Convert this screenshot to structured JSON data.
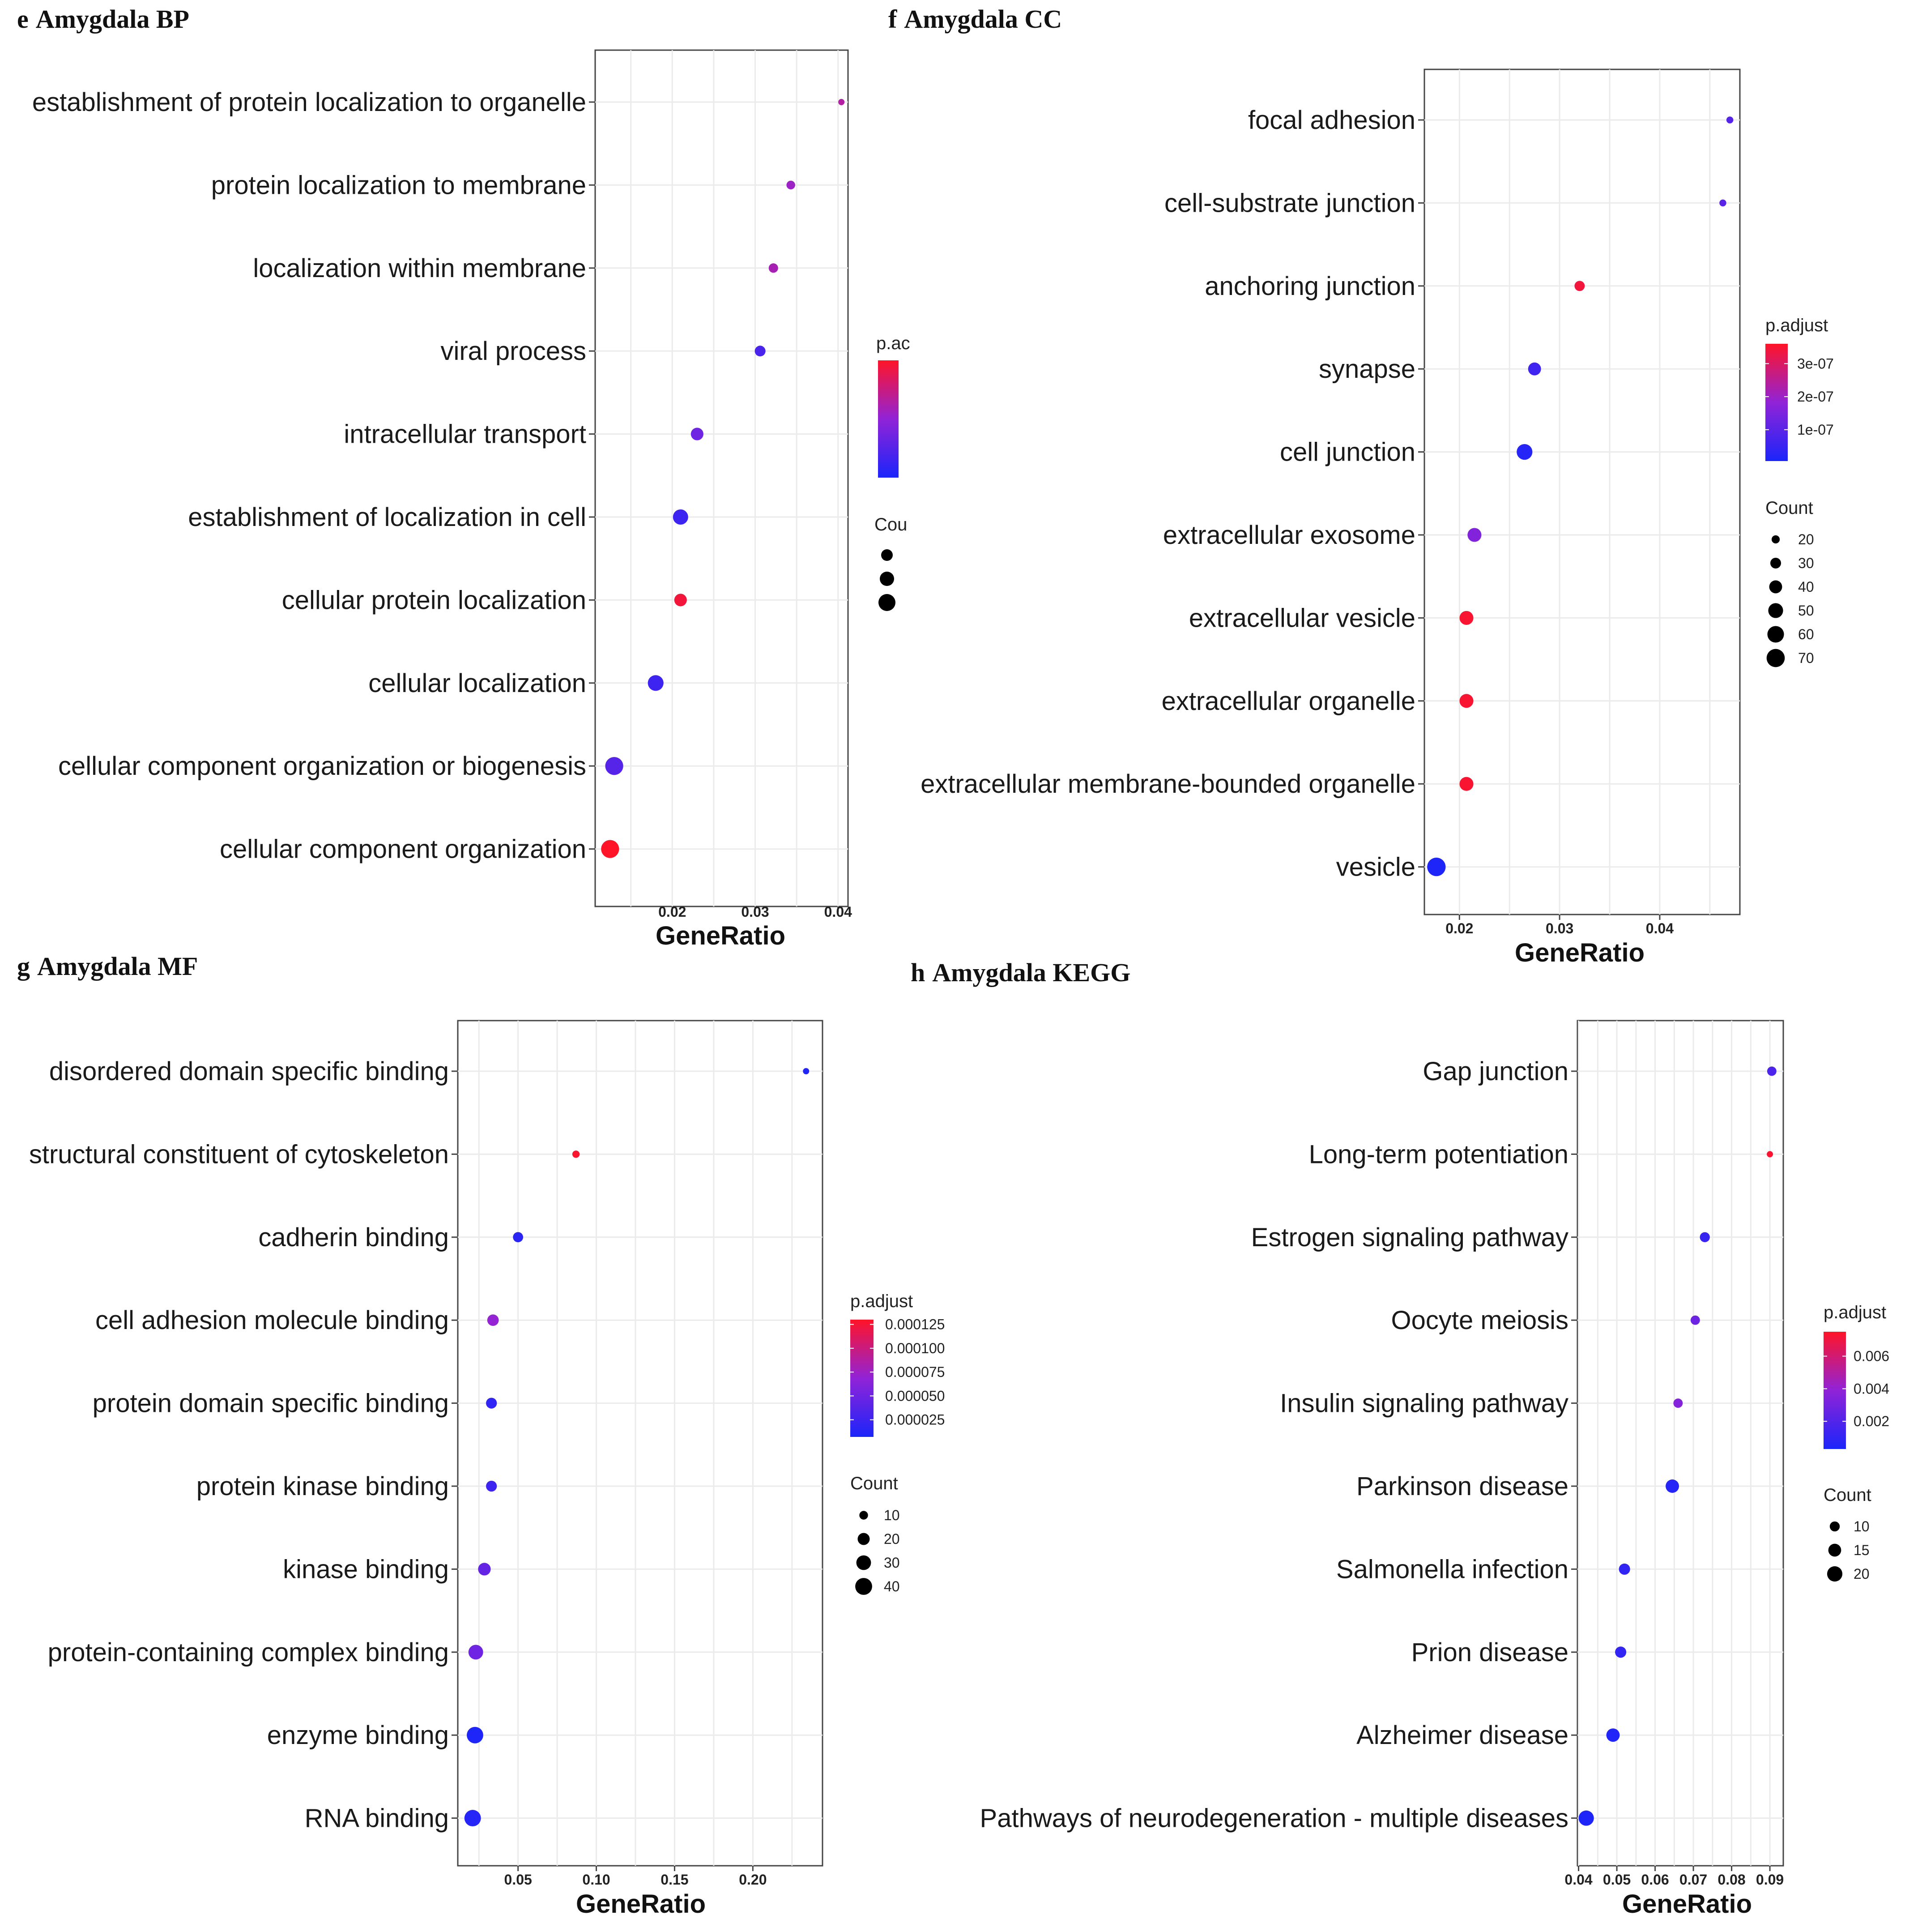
{
  "chart_data": [
    {
      "panel": "e",
      "title": "Amygdala BP",
      "type": "scatter",
      "xlabel": "GeneRatio",
      "xticks": [
        0.02,
        0.03,
        0.04
      ],
      "xtick_labels": [
        "0.02",
        "0.03",
        "0.04"
      ],
      "xlim": [
        0.0107,
        0.0412
      ],
      "color_legend": {
        "title": "p.ac",
        "ticks": [],
        "labels": [],
        "range": [
          0,
          1
        ]
      },
      "size_legend": {
        "title": "Cou",
        "values": [],
        "labels": []
      },
      "size_range": [
        6,
        30
      ],
      "points": [
        {
          "term": "establishment of protein localization to organelle",
          "x": 0.0404,
          "size": 6,
          "color": 0.65
        },
        {
          "term": "protein localization to membrane",
          "x": 0.0343,
          "size": 9,
          "color": 0.55
        },
        {
          "term": "localization within membrane",
          "x": 0.0322,
          "size": 10,
          "color": 0.6
        },
        {
          "term": "viral process",
          "x": 0.0306,
          "size": 12,
          "color": 0.2
        },
        {
          "term": "intracellular transport",
          "x": 0.023,
          "size": 15,
          "color": 0.35
        },
        {
          "term": "establishment of localization in cell",
          "x": 0.021,
          "size": 20,
          "color": 0.15
        },
        {
          "term": "cellular protein localization",
          "x": 0.021,
          "size": 15,
          "color": 0.95
        },
        {
          "term": "cellular localization",
          "x": 0.018,
          "size": 21,
          "color": 0.15
        },
        {
          "term": "cellular component organization or biogenesis",
          "x": 0.013,
          "size": 26,
          "color": 0.25
        },
        {
          "term": "cellular component organization",
          "x": 0.0125,
          "size": 26,
          "color": 1.0
        }
      ]
    },
    {
      "panel": "f",
      "title": "Amygdala CC",
      "type": "scatter",
      "xlabel": "GeneRatio",
      "xticks": [
        0.02,
        0.03,
        0.04
      ],
      "xtick_labels": [
        "0.02",
        "0.03",
        "0.04"
      ],
      "xlim": [
        0.0165,
        0.048
      ],
      "color_legend": {
        "title": "p.adjust",
        "ticks": [
          1e-07,
          2e-07,
          3e-07
        ],
        "labels": [
          "1e-07",
          "2e-07",
          "3e-07"
        ],
        "range": [
          5e-09,
          3.6e-07
        ]
      },
      "size_legend": {
        "title": "Count",
        "values": [
          20,
          30,
          40,
          50,
          60,
          70
        ],
        "labels": [
          "20",
          "30",
          "40",
          "50",
          "60",
          "70"
        ]
      },
      "size_range": [
        14,
        74
      ],
      "points": [
        {
          "term": "focal adhesion",
          "x": 0.047,
          "size": 16,
          "color": 9e-08
        },
        {
          "term": "cell-substrate junction",
          "x": 0.0463,
          "size": 16,
          "color": 1e-07
        },
        {
          "term": "anchoring junction",
          "x": 0.032,
          "size": 28,
          "color": 3.4e-07
        },
        {
          "term": "synapse",
          "x": 0.0275,
          "size": 40,
          "color": 6e-08
        },
        {
          "term": "cell junction",
          "x": 0.0265,
          "size": 55,
          "color": 2e-08
        },
        {
          "term": "extracellular exosome",
          "x": 0.0215,
          "size": 45,
          "color": 1.6e-07
        },
        {
          "term": "extracellular vesicle",
          "x": 0.0207,
          "size": 45,
          "color": 3.5e-07
        },
        {
          "term": "extracellular organelle",
          "x": 0.0207,
          "size": 45,
          "color": 3.5e-07
        },
        {
          "term": "extracellular membrane-bounded organelle",
          "x": 0.0207,
          "size": 45,
          "color": 3.5e-07
        },
        {
          "term": "vesicle",
          "x": 0.0177,
          "size": 72,
          "color": 1e-08
        }
      ]
    },
    {
      "panel": "g",
      "title": "Amygdala MF",
      "type": "scatter",
      "xlabel": "GeneRatio",
      "xticks": [
        0.05,
        0.1,
        0.15,
        0.2
      ],
      "xtick_labels": [
        "0.05",
        "0.10",
        "0.15",
        "0.20"
      ],
      "xlim": [
        0.0115,
        0.2445
      ],
      "color_legend": {
        "title": "p.adjust",
        "ticks": [
          2.5e-05,
          5e-05,
          7.5e-05,
          0.0001,
          0.000125
        ],
        "labels": [
          "0.000025",
          "0.000050",
          "0.000075",
          "0.000100",
          "0.000125"
        ],
        "range": [
          7e-06,
          0.00013
        ]
      },
      "size_legend": {
        "title": "Count",
        "values": [
          10,
          20,
          30,
          40
        ],
        "labels": [
          "10",
          "20",
          "30",
          "40"
        ]
      },
      "size_range": [
        5,
        45
      ],
      "points": [
        {
          "term": "disordered domain specific binding",
          "x": 0.234,
          "size": 5,
          "color": 1e-05
        },
        {
          "term": "structural constituent of cytoskeleton",
          "x": 0.087,
          "size": 7,
          "color": 0.000128
        },
        {
          "term": "cadherin binding",
          "x": 0.05,
          "size": 14,
          "color": 1.5e-05
        },
        {
          "term": "cell adhesion molecule binding",
          "x": 0.034,
          "size": 18,
          "color": 7e-05
        },
        {
          "term": "protein domain specific binding",
          "x": 0.033,
          "size": 16,
          "color": 1.8e-05
        },
        {
          "term": "protein kinase binding",
          "x": 0.033,
          "size": 16,
          "color": 2.5e-05
        },
        {
          "term": "kinase binding",
          "x": 0.0285,
          "size": 22,
          "color": 4.5e-05
        },
        {
          "term": "protein-containing complex binding",
          "x": 0.023,
          "size": 30,
          "color": 5e-05
        },
        {
          "term": "enzyme binding",
          "x": 0.0225,
          "size": 38,
          "color": 8e-06
        },
        {
          "term": "RNA binding",
          "x": 0.021,
          "size": 38,
          "color": 1.2e-05
        }
      ]
    },
    {
      "panel": "h",
      "title": "Amygdala KEGG",
      "type": "scatter",
      "xlabel": "GeneRatio",
      "xticks": [
        0.04,
        0.05,
        0.06,
        0.07,
        0.08,
        0.09
      ],
      "xtick_labels": [
        "0.04",
        "0.05",
        "0.06",
        "0.07",
        "0.08",
        "0.09"
      ],
      "xlim": [
        0.0397,
        0.0935
      ],
      "color_legend": {
        "title": "p.adjust",
        "ticks": [
          0.002,
          0.004,
          0.006
        ],
        "labels": [
          "0.002",
          "0.004",
          "0.006"
        ],
        "range": [
          0.0003,
          0.0075
        ]
      },
      "size_legend": {
        "title": "Count",
        "values": [
          10,
          15,
          20
        ],
        "labels": [
          "10",
          "15",
          "20"
        ]
      },
      "size_range": [
        5,
        24
      ],
      "points": [
        {
          "term": "Gap junction",
          "x": 0.0905,
          "size": 9,
          "color": 0.0018
        },
        {
          "term": "Long-term potentiation",
          "x": 0.09,
          "size": 5,
          "color": 0.0073
        },
        {
          "term": "Estrogen signaling pathway",
          "x": 0.073,
          "size": 10,
          "color": 0.0012
        },
        {
          "term": "Oocyte meiosis",
          "x": 0.0705,
          "size": 9,
          "color": 0.0028
        },
        {
          "term": "Insulin signaling pathway",
          "x": 0.066,
          "size": 9,
          "color": 0.0035
        },
        {
          "term": "Parkinson disease",
          "x": 0.0645,
          "size": 16,
          "color": 0.0006
        },
        {
          "term": "Salmonella infection",
          "x": 0.052,
          "size": 12,
          "color": 0.001
        },
        {
          "term": "Prion disease",
          "x": 0.051,
          "size": 12,
          "color": 0.001
        },
        {
          "term": "Alzheimer disease",
          "x": 0.049,
          "size": 16,
          "color": 0.0005
        },
        {
          "term": "Pathways of neurodegeneration - multiple diseases",
          "x": 0.042,
          "size": 20,
          "color": 0.0004
        }
      ]
    }
  ]
}
